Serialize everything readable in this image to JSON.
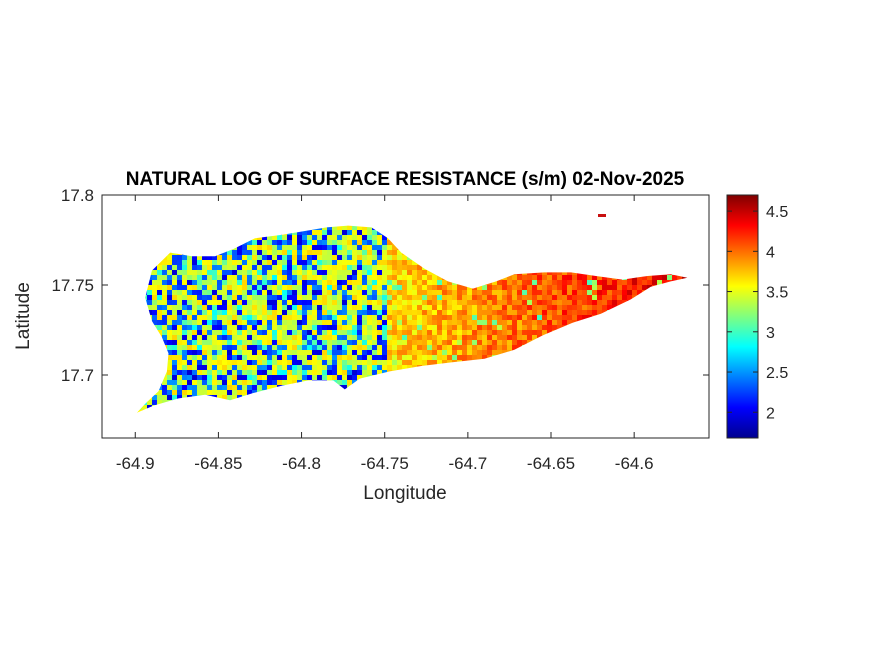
{
  "chart_data": {
    "type": "heatmap",
    "title": "NATURAL LOG OF SURFACE RESISTANCE (s/m) 02-Nov-2025",
    "xlabel": "Longitude",
    "ylabel": "Latitude",
    "xlim": [
      -64.92,
      -64.555
    ],
    "ylim": [
      17.665,
      17.8
    ],
    "xticks": [
      -64.9,
      -64.85,
      -64.8,
      -64.75,
      -64.7,
      -64.65,
      -64.6
    ],
    "xtick_labels": [
      "-64.9",
      "-64.85",
      "-64.8",
      "-64.75",
      "-64.7",
      "-64.65",
      "-64.6"
    ],
    "yticks": [
      17.7,
      17.75,
      17.8
    ],
    "ytick_labels": [
      "17.7",
      "17.75",
      "17.8"
    ],
    "colorbar": {
      "colormap": "jet",
      "range": [
        1.68,
        4.7
      ],
      "ticks": [
        2,
        2.5,
        3,
        3.5,
        4,
        4.5
      ],
      "tick_labels": [
        "2",
        "2.5",
        "3",
        "3.5",
        "4",
        "4.5"
      ],
      "location": "right"
    },
    "region_outline": [
      [
        -64.899,
        17.679
      ],
      [
        -64.894,
        17.684
      ],
      [
        -64.886,
        17.691
      ],
      [
        -64.881,
        17.702
      ],
      [
        -64.88,
        17.712
      ],
      [
        -64.884,
        17.721
      ],
      [
        -64.89,
        17.73
      ],
      [
        -64.894,
        17.743
      ],
      [
        -64.89,
        17.758
      ],
      [
        -64.879,
        17.768
      ],
      [
        -64.866,
        17.766
      ],
      [
        -64.852,
        17.766
      ],
      [
        -64.841,
        17.77
      ],
      [
        -64.828,
        17.776
      ],
      [
        -64.811,
        17.778
      ],
      [
        -64.798,
        17.78
      ],
      [
        -64.785,
        17.782
      ],
      [
        -64.772,
        17.783
      ],
      [
        -64.758,
        17.782
      ],
      [
        -64.748,
        17.776
      ],
      [
        -64.74,
        17.768
      ],
      [
        -64.726,
        17.759
      ],
      [
        -64.712,
        17.752
      ],
      [
        -64.697,
        17.748
      ],
      [
        -64.683,
        17.752
      ],
      [
        -64.672,
        17.756
      ],
      [
        -64.654,
        17.757
      ],
      [
        -64.638,
        17.757
      ],
      [
        -64.623,
        17.755
      ],
      [
        -64.607,
        17.753
      ],
      [
        -64.592,
        17.755
      ],
      [
        -64.578,
        17.756
      ],
      [
        -64.568,
        17.754
      ],
      [
        -64.578,
        17.752
      ],
      [
        -64.59,
        17.749
      ],
      [
        -64.602,
        17.742
      ],
      [
        -64.62,
        17.734
      ],
      [
        -64.637,
        17.729
      ],
      [
        -64.655,
        17.722
      ],
      [
        -64.672,
        17.714
      ],
      [
        -64.69,
        17.709
      ],
      [
        -64.71,
        17.707
      ],
      [
        -64.728,
        17.705
      ],
      [
        -64.747,
        17.702
      ],
      [
        -64.765,
        17.698
      ],
      [
        -64.774,
        17.692
      ],
      [
        -64.781,
        17.697
      ],
      [
        -64.796,
        17.697
      ],
      [
        -64.812,
        17.694
      ],
      [
        -64.829,
        17.69
      ],
      [
        -64.843,
        17.686
      ],
      [
        -64.858,
        17.689
      ],
      [
        -64.874,
        17.687
      ],
      [
        -64.889,
        17.683
      ]
    ],
    "value_field": {
      "west_mean": 2.8,
      "east_mean": 4.4
    }
  }
}
